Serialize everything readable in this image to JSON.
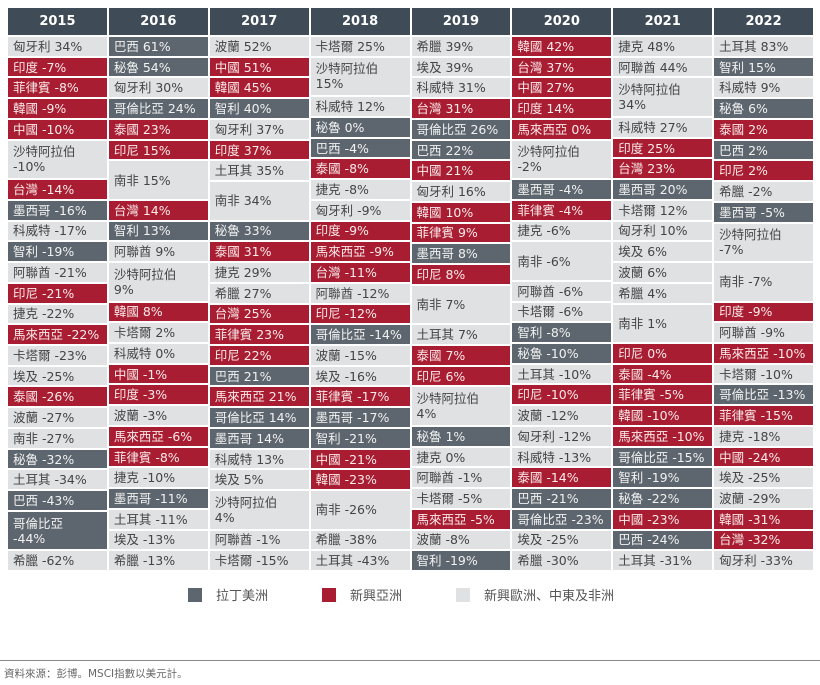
{
  "colors": {
    "latin_america": "#5d666e",
    "emerging_asia": "#a81d31",
    "emea": "#dfe1e3",
    "header": "#3f4c58"
  },
  "legend": [
    {
      "cat": "L",
      "label": "拉丁美洲"
    },
    {
      "cat": "A",
      "label": "新興亞洲"
    },
    {
      "cat": "E",
      "label": "新興歐洲、中東及非洲"
    }
  ],
  "source": "資料來源：彭博。MSCI指數以美元計。",
  "chart_data": {
    "type": "table",
    "title": "",
    "columns": [
      {
        "year": "2015",
        "cells": [
          {
            "label": "匈牙利 34%",
            "cat": "E"
          },
          {
            "label": "印度 -7%",
            "cat": "A"
          },
          {
            "label": "菲律賓 -8%",
            "cat": "A"
          },
          {
            "label": "韓國 -9%",
            "cat": "A"
          },
          {
            "label": "中國 -10%",
            "cat": "A"
          },
          {
            "label": "沙特阿拉伯 -10%",
            "cat": "E"
          },
          {
            "label": "台灣 -14%",
            "cat": "A"
          },
          {
            "label": "墨西哥 -16%",
            "cat": "L"
          },
          {
            "label": "科威特 -17%",
            "cat": "E"
          },
          {
            "label": "智利 -19%",
            "cat": "L"
          },
          {
            "label": "阿聯酋 -21%",
            "cat": "E"
          },
          {
            "label": "印尼 -21%",
            "cat": "A"
          },
          {
            "label": "捷克 -22%",
            "cat": "E"
          },
          {
            "label": "馬來西亞 -22%",
            "cat": "A"
          },
          {
            "label": "卡塔爾 -23%",
            "cat": "E"
          },
          {
            "label": "埃及 -25%",
            "cat": "E"
          },
          {
            "label": "泰國 -26%",
            "cat": "A"
          },
          {
            "label": "波蘭 -27%",
            "cat": "E"
          },
          {
            "label": "南非 -27%",
            "cat": "E"
          },
          {
            "label": "秘魯 -32%",
            "cat": "L"
          },
          {
            "label": "土耳其 -34%",
            "cat": "E"
          },
          {
            "label": "巴西 -43%",
            "cat": "L"
          },
          {
            "label": "哥倫比亞 -44%",
            "cat": "L"
          },
          {
            "label": "希臘 -62%",
            "cat": "E"
          }
        ]
      },
      {
        "year": "2016",
        "cells": [
          {
            "label": "巴西 61%",
            "cat": "L"
          },
          {
            "label": "秘魯 54%",
            "cat": "L"
          },
          {
            "label": "匈牙利 30%",
            "cat": "E"
          },
          {
            "label": "哥倫比亞 24%",
            "cat": "L"
          },
          {
            "label": "泰國 23%",
            "cat": "A"
          },
          {
            "label": "印尼 15%",
            "cat": "A"
          },
          {
            "label": "南非 15%",
            "cat": "E"
          },
          {
            "label": "台灣 14%",
            "cat": "A"
          },
          {
            "label": "智利 13%",
            "cat": "L"
          },
          {
            "label": "阿聯酋 9%",
            "cat": "E"
          },
          {
            "label": "沙特阿拉伯 9%",
            "cat": "E"
          },
          {
            "label": "韓國 8%",
            "cat": "A"
          },
          {
            "label": "卡塔爾 2%",
            "cat": "E"
          },
          {
            "label": "科威特 0%",
            "cat": "E"
          },
          {
            "label": "中國 -1%",
            "cat": "A"
          },
          {
            "label": "印度 -3%",
            "cat": "A"
          },
          {
            "label": "波蘭 -3%",
            "cat": "E"
          },
          {
            "label": "馬來西亞 -6%",
            "cat": "A"
          },
          {
            "label": "菲律賓 -8%",
            "cat": "A"
          },
          {
            "label": "捷克 -10%",
            "cat": "E"
          },
          {
            "label": "墨西哥 -11%",
            "cat": "L"
          },
          {
            "label": "土耳其 -11%",
            "cat": "E"
          },
          {
            "label": "埃及 -13%",
            "cat": "E"
          },
          {
            "label": "希臘 -13%",
            "cat": "E"
          }
        ]
      },
      {
        "year": "2017",
        "cells": [
          {
            "label": "波蘭 52%",
            "cat": "E"
          },
          {
            "label": "中國 51%",
            "cat": "A"
          },
          {
            "label": "韓國 45%",
            "cat": "A"
          },
          {
            "label": "智利 40%",
            "cat": "L"
          },
          {
            "label": "匈牙利 37%",
            "cat": "E"
          },
          {
            "label": "印度 37%",
            "cat": "A"
          },
          {
            "label": "土耳其 35%",
            "cat": "E"
          },
          {
            "label": "南非 34%",
            "cat": "E"
          },
          {
            "label": "秘魯 33%",
            "cat": "L"
          },
          {
            "label": "泰國 31%",
            "cat": "A"
          },
          {
            "label": "捷克 29%",
            "cat": "E"
          },
          {
            "label": "希臘 27%",
            "cat": "E"
          },
          {
            "label": "台灣 25%",
            "cat": "A"
          },
          {
            "label": "菲律賓 23%",
            "cat": "A"
          },
          {
            "label": "印尼 22%",
            "cat": "A"
          },
          {
            "label": "巴西 21%",
            "cat": "L"
          },
          {
            "label": "馬來西亞 21%",
            "cat": "A"
          },
          {
            "label": "哥倫比亞 14%",
            "cat": "L"
          },
          {
            "label": "墨西哥 14%",
            "cat": "L"
          },
          {
            "label": "科威特 13%",
            "cat": "E"
          },
          {
            "label": "埃及 5%",
            "cat": "E"
          },
          {
            "label": "沙特阿拉伯 4%",
            "cat": "E"
          },
          {
            "label": "阿聯酋 -1%",
            "cat": "E"
          },
          {
            "label": "卡塔爾 -15%",
            "cat": "E"
          }
        ]
      },
      {
        "year": "2018",
        "cells": [
          {
            "label": "卡塔爾 25%",
            "cat": "E"
          },
          {
            "label": "沙特阿拉伯 15%",
            "cat": "E"
          },
          {
            "label": "科威特 12%",
            "cat": "E"
          },
          {
            "label": "秘魯 0%",
            "cat": "L"
          },
          {
            "label": "巴西 -4%",
            "cat": "L"
          },
          {
            "label": "泰國 -8%",
            "cat": "A"
          },
          {
            "label": "捷克 -8%",
            "cat": "E"
          },
          {
            "label": "匈牙利 -9%",
            "cat": "E"
          },
          {
            "label": "印度 -9%",
            "cat": "A"
          },
          {
            "label": "馬來西亞 -9%",
            "cat": "A"
          },
          {
            "label": "台灣 -11%",
            "cat": "A"
          },
          {
            "label": "阿聯酋 -12%",
            "cat": "E"
          },
          {
            "label": "印尼 -12%",
            "cat": "A"
          },
          {
            "label": "哥倫比亞 -14%",
            "cat": "L"
          },
          {
            "label": "波蘭 -15%",
            "cat": "E"
          },
          {
            "label": "埃及 -16%",
            "cat": "E"
          },
          {
            "label": "菲律賓 -17%",
            "cat": "A"
          },
          {
            "label": "墨西哥 -17%",
            "cat": "L"
          },
          {
            "label": "智利 -21%",
            "cat": "L"
          },
          {
            "label": "中國 -21%",
            "cat": "A"
          },
          {
            "label": "韓國 -23%",
            "cat": "A"
          },
          {
            "label": "南非 -26%",
            "cat": "E"
          },
          {
            "label": "希臘 -38%",
            "cat": "E"
          },
          {
            "label": "土耳其 -43%",
            "cat": "E"
          }
        ]
      },
      {
        "year": "2019",
        "cells": [
          {
            "label": "希臘 39%",
            "cat": "E"
          },
          {
            "label": "埃及 39%",
            "cat": "E"
          },
          {
            "label": "科威特 31%",
            "cat": "E"
          },
          {
            "label": "台灣 31%",
            "cat": "A"
          },
          {
            "label": "哥倫比亞 26%",
            "cat": "L"
          },
          {
            "label": "巴西 22%",
            "cat": "L"
          },
          {
            "label": "中國 21%",
            "cat": "A"
          },
          {
            "label": "匈牙利 16%",
            "cat": "E"
          },
          {
            "label": "韓國 10%",
            "cat": "A"
          },
          {
            "label": "菲律賓 9%",
            "cat": "A"
          },
          {
            "label": "墨西哥 8%",
            "cat": "L"
          },
          {
            "label": "印尼 8%",
            "cat": "A"
          },
          {
            "label": "南非 7%",
            "cat": "E"
          },
          {
            "label": "土耳其 7%",
            "cat": "E"
          },
          {
            "label": "泰國 7%",
            "cat": "A"
          },
          {
            "label": "印尼 6%",
            "cat": "A"
          },
          {
            "label": "沙特阿拉伯 4%",
            "cat": "E"
          },
          {
            "label": "秘魯 1%",
            "cat": "L"
          },
          {
            "label": "捷克 0%",
            "cat": "E"
          },
          {
            "label": "阿聯酋 -1%",
            "cat": "E"
          },
          {
            "label": "卡塔爾 -5%",
            "cat": "E"
          },
          {
            "label": "馬來西亞 -5%",
            "cat": "A"
          },
          {
            "label": "波蘭 -8%",
            "cat": "E"
          },
          {
            "label": "智利 -19%",
            "cat": "L"
          }
        ]
      },
      {
        "year": "2020",
        "cells": [
          {
            "label": "韓國 42%",
            "cat": "A"
          },
          {
            "label": "台灣 37%",
            "cat": "A"
          },
          {
            "label": "中國 27%",
            "cat": "A"
          },
          {
            "label": "印度 14%",
            "cat": "A"
          },
          {
            "label": "馬來西亞 0%",
            "cat": "A"
          },
          {
            "label": "沙特阿拉伯 -2%",
            "cat": "E"
          },
          {
            "label": "墨西哥 -4%",
            "cat": "L"
          },
          {
            "label": "菲律賓 -4%",
            "cat": "A"
          },
          {
            "label": "捷克 -6%",
            "cat": "E"
          },
          {
            "label": "南非 -6%",
            "cat": "E"
          },
          {
            "label": "阿聯酋 -6%",
            "cat": "E"
          },
          {
            "label": "卡塔爾 -6%",
            "cat": "E"
          },
          {
            "label": "智利 -8%",
            "cat": "L"
          },
          {
            "label": "秘魯 -10%",
            "cat": "L"
          },
          {
            "label": "土耳其 -10%",
            "cat": "E"
          },
          {
            "label": "印尼 -10%",
            "cat": "A"
          },
          {
            "label": "波蘭 -12%",
            "cat": "E"
          },
          {
            "label": "匈牙利 -12%",
            "cat": "E"
          },
          {
            "label": "科威特 -13%",
            "cat": "E"
          },
          {
            "label": "泰國 -14%",
            "cat": "A"
          },
          {
            "label": "巴西 -21%",
            "cat": "L"
          },
          {
            "label": "哥倫比亞 -23%",
            "cat": "L"
          },
          {
            "label": "埃及 -25%",
            "cat": "E"
          },
          {
            "label": "希臘 -30%",
            "cat": "E"
          }
        ]
      },
      {
        "year": "2021",
        "cells": [
          {
            "label": "捷克 48%",
            "cat": "E"
          },
          {
            "label": "阿聯酋 44%",
            "cat": "E"
          },
          {
            "label": "沙特阿拉伯 34%",
            "cat": "E"
          },
          {
            "label": "科威特 27%",
            "cat": "E"
          },
          {
            "label": "印度 25%",
            "cat": "A"
          },
          {
            "label": "台灣 23%",
            "cat": "A"
          },
          {
            "label": "墨西哥 20%",
            "cat": "L"
          },
          {
            "label": "卡塔爾 12%",
            "cat": "E"
          },
          {
            "label": "匈牙利 10%",
            "cat": "E"
          },
          {
            "label": "埃及 6%",
            "cat": "E"
          },
          {
            "label": "波蘭 6%",
            "cat": "E"
          },
          {
            "label": "希臘 4%",
            "cat": "E"
          },
          {
            "label": "南非 1%",
            "cat": "E"
          },
          {
            "label": "印尼 0%",
            "cat": "A"
          },
          {
            "label": "泰國 -4%",
            "cat": "A"
          },
          {
            "label": "菲律賓 -5%",
            "cat": "A"
          },
          {
            "label": "韓國 -10%",
            "cat": "A"
          },
          {
            "label": "馬來西亞 -10%",
            "cat": "A"
          },
          {
            "label": "哥倫比亞 -15%",
            "cat": "L"
          },
          {
            "label": "智利 -19%",
            "cat": "L"
          },
          {
            "label": "秘魯 -22%",
            "cat": "L"
          },
          {
            "label": "中國 -23%",
            "cat": "A"
          },
          {
            "label": "巴西 -24%",
            "cat": "L"
          },
          {
            "label": "土耳其 -31%",
            "cat": "E"
          }
        ]
      },
      {
        "year": "2022",
        "cells": [
          {
            "label": "土耳其 83%",
            "cat": "E"
          },
          {
            "label": "智利 15%",
            "cat": "L"
          },
          {
            "label": "科威特 9%",
            "cat": "E"
          },
          {
            "label": "秘魯 6%",
            "cat": "L"
          },
          {
            "label": "泰國 2%",
            "cat": "A"
          },
          {
            "label": "巴西 2%",
            "cat": "L"
          },
          {
            "label": "印尼 2%",
            "cat": "A"
          },
          {
            "label": "希臘 -2%",
            "cat": "E"
          },
          {
            "label": "墨西哥 -5%",
            "cat": "L"
          },
          {
            "label": "沙特阿拉伯 -7%",
            "cat": "E"
          },
          {
            "label": "南非 -7%",
            "cat": "E"
          },
          {
            "label": "印度 -9%",
            "cat": "A"
          },
          {
            "label": "阿聯酋 -9%",
            "cat": "E"
          },
          {
            "label": "馬來西亞 -10%",
            "cat": "A"
          },
          {
            "label": "卡塔爾 -10%",
            "cat": "E"
          },
          {
            "label": "哥倫比亞 -13%",
            "cat": "L"
          },
          {
            "label": "菲律賓 -15%",
            "cat": "A"
          },
          {
            "label": "捷克 -18%",
            "cat": "E"
          },
          {
            "label": "中國 -24%",
            "cat": "A"
          },
          {
            "label": "埃及 -25%",
            "cat": "E"
          },
          {
            "label": "波蘭 -29%",
            "cat": "E"
          },
          {
            "label": "韓國 -31%",
            "cat": "A"
          },
          {
            "label": "台灣 -32%",
            "cat": "A"
          },
          {
            "label": "匈牙利 -33%",
            "cat": "E"
          }
        ]
      }
    ]
  }
}
